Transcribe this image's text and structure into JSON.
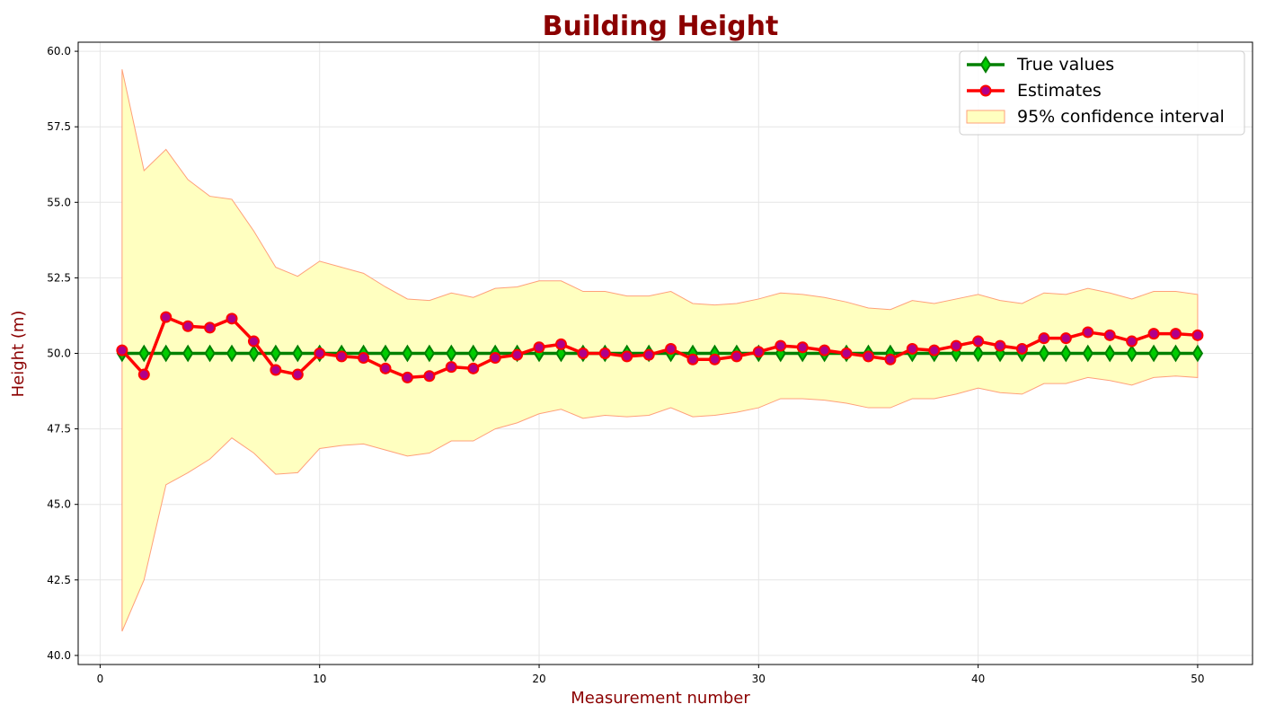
{
  "chart_data": {
    "type": "line",
    "title": "Building Height",
    "xlabel": "Measurement number",
    "ylabel": "Height (m)",
    "title_color": "#8b0000",
    "label_color": "#8b0000",
    "xlim": [
      -1,
      52.5
    ],
    "ylim": [
      39.7,
      60.3
    ],
    "xticks": [
      0,
      10,
      20,
      30,
      40,
      50
    ],
    "xtick_labels": [
      "0",
      "10",
      "20",
      "30",
      "40",
      "50"
    ],
    "yticks": [
      40.0,
      42.5,
      45.0,
      47.5,
      50.0,
      52.5,
      55.0,
      57.5,
      60.0
    ],
    "ytick_labels": [
      "40.0",
      "42.5",
      "45.0",
      "47.5",
      "50.0",
      "52.5",
      "55.0",
      "57.5",
      "60.0"
    ],
    "grid": true,
    "legend_position": "top-right",
    "x": [
      1,
      2,
      3,
      4,
      5,
      6,
      7,
      8,
      9,
      10,
      11,
      12,
      13,
      14,
      15,
      16,
      17,
      18,
      19,
      20,
      21,
      22,
      23,
      24,
      25,
      26,
      27,
      28,
      29,
      30,
      31,
      32,
      33,
      34,
      35,
      36,
      37,
      38,
      39,
      40,
      41,
      42,
      43,
      44,
      45,
      46,
      47,
      48,
      49,
      50
    ],
    "series": [
      {
        "name": "True values",
        "color": "#008000",
        "marker_fill": "#00cc00",
        "marker": "diamond",
        "values": [
          50,
          50,
          50,
          50,
          50,
          50,
          50,
          50,
          50,
          50,
          50,
          50,
          50,
          50,
          50,
          50,
          50,
          50,
          50,
          50,
          50,
          50,
          50,
          50,
          50,
          50,
          50,
          50,
          50,
          50,
          50,
          50,
          50,
          50,
          50,
          50,
          50,
          50,
          50,
          50,
          50,
          50,
          50,
          50,
          50,
          50,
          50,
          50,
          50,
          50
        ]
      },
      {
        "name": "Estimates",
        "color": "#ff0000",
        "marker_fill": "#b0008a",
        "marker": "circle",
        "values": [
          50.1,
          49.3,
          51.2,
          50.9,
          50.85,
          51.15,
          50.4,
          49.45,
          49.3,
          50.0,
          49.9,
          49.85,
          49.5,
          49.2,
          49.25,
          49.55,
          49.5,
          49.85,
          49.95,
          50.2,
          50.3,
          50.0,
          50.0,
          49.9,
          49.95,
          50.15,
          49.8,
          49.8,
          49.9,
          50.05,
          50.25,
          50.2,
          50.1,
          50.0,
          49.9,
          49.8,
          50.15,
          50.1,
          50.25,
          50.4,
          50.25,
          50.15,
          50.5,
          50.5,
          50.7,
          50.6,
          50.4,
          50.65,
          50.65,
          50.6
        ]
      }
    ],
    "confidence_interval": {
      "name": "95% confidence interval",
      "fill": "#ffffc0",
      "edge": "#ffa07a",
      "lower": [
        40.8,
        42.5,
        45.65,
        46.05,
        46.5,
        47.2,
        46.7,
        46.0,
        46.05,
        46.85,
        46.95,
        47.0,
        46.8,
        46.6,
        46.7,
        47.1,
        47.1,
        47.5,
        47.7,
        48.0,
        48.15,
        47.85,
        47.95,
        47.9,
        47.95,
        48.2,
        47.9,
        47.95,
        48.05,
        48.2,
        48.5,
        48.5,
        48.45,
        48.35,
        48.2,
        48.2,
        48.5,
        48.5,
        48.65,
        48.85,
        48.7,
        48.65,
        49.0,
        49.0,
        49.2,
        49.1,
        48.95,
        49.2,
        49.25,
        49.2
      ],
      "upper": [
        59.4,
        56.05,
        56.75,
        55.75,
        55.2,
        55.1,
        54.05,
        52.85,
        52.55,
        53.05,
        52.85,
        52.65,
        52.2,
        51.8,
        51.75,
        52.0,
        51.85,
        52.15,
        52.2,
        52.4,
        52.4,
        52.05,
        52.05,
        51.9,
        51.9,
        52.05,
        51.65,
        51.6,
        51.65,
        51.8,
        52.0,
        51.95,
        51.85,
        51.7,
        51.5,
        51.45,
        51.75,
        51.65,
        51.8,
        51.95,
        51.75,
        51.65,
        52.0,
        51.95,
        52.15,
        52.0,
        51.8,
        52.05,
        52.05,
        51.95
      ]
    }
  }
}
